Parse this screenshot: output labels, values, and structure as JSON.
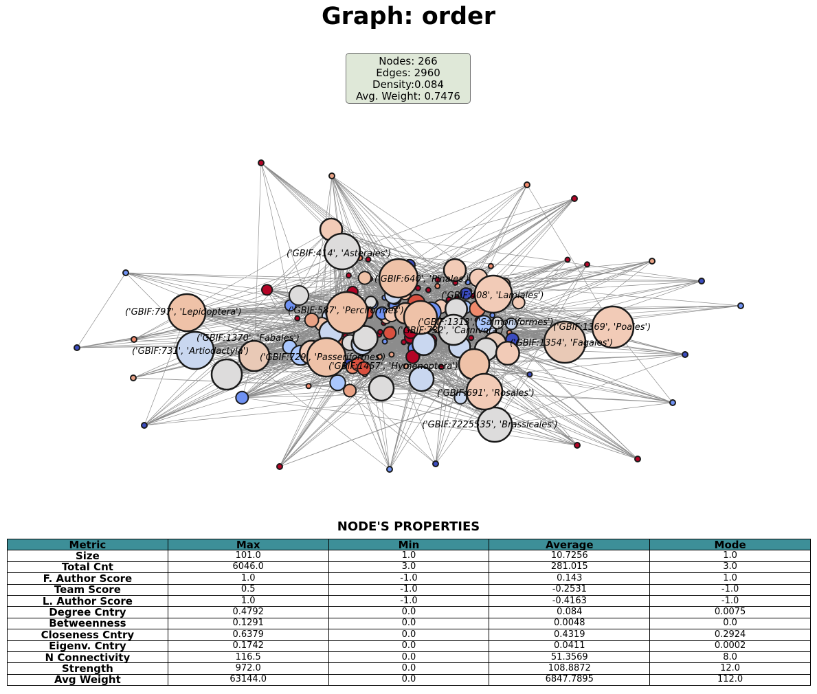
{
  "title": "Graph: order",
  "stats": {
    "nodes": "Nodes: 266",
    "edges": "Edges: 2960",
    "density": "Density:0.084",
    "avg_weight": "Avg. Weight: 0.7476"
  },
  "node_labels": [
    "('GBIF:414', 'Asterales')",
    "('GBIF:640', 'Pinales')",
    "('GBIF:408', 'Lamiales')",
    "('GBIF:797', 'Lepidoptera')",
    "('GBIF:587', 'Perciformes')",
    "('GBIF:1313', 'Salmoniformes')",
    "('GBIF:1369', 'Poales')",
    "('GBIF:732', 'Carnivora')",
    "('GBIF:1370', 'Fabales')",
    "('GBIF:1354', 'Fagales')",
    "('GBIF:731', 'Artiodactyla')",
    "('GBIF:729', 'Passeriformes')",
    "('GBIF:1457', 'Hymenoptera')",
    "('GBIF:691', 'Rosales')",
    "('GBIF:7225535', 'Brassicales')"
  ],
  "colors": {
    "coldest": "#3b4cc0",
    "neutral": "#dddcdc",
    "warmest": "#b40426",
    "node_edge": "#1a1a1a",
    "graph_edge": "#000000",
    "table_header_bg": "#3d8f98",
    "stats_box_bg": "#dfe8d8"
  },
  "table": {
    "title": "NODE'S PROPERTIES",
    "headers": [
      "Metric",
      "Max",
      "Min",
      "Average",
      "Mode"
    ],
    "rows": [
      [
        "Size",
        "101.0",
        "1.0",
        "10.7256",
        "1.0"
      ],
      [
        "Total Cnt",
        "6046.0",
        "3.0",
        "281.015",
        "3.0"
      ],
      [
        "F. Author Score",
        "1.0",
        "-1.0",
        "0.143",
        "1.0"
      ],
      [
        "Team Score",
        "0.5",
        "-1.0",
        "-0.2531",
        "-1.0"
      ],
      [
        "L. Author Score",
        "1.0",
        "-1.0",
        "-0.4163",
        "-1.0"
      ],
      [
        "Degree Cntry",
        "0.4792",
        "0.0",
        "0.084",
        "0.0075"
      ],
      [
        "Betweenness",
        "0.1291",
        "0.0",
        "0.0048",
        "0.0"
      ],
      [
        "Closeness Cntry",
        "0.6379",
        "0.0",
        "0.4319",
        "0.2924"
      ],
      [
        "Eigenv. Cntry",
        "0.1742",
        "0.0",
        "0.0411",
        "0.0002"
      ],
      [
        "N Connectivity",
        "116.5",
        "0.0",
        "51.3569",
        "8.0"
      ],
      [
        "Strength",
        "972.0",
        "0.0",
        "108.8872",
        "12.0"
      ],
      [
        "Avg Weight",
        "63144.0",
        "0.0",
        "6847.7895",
        "112.0"
      ]
    ]
  }
}
